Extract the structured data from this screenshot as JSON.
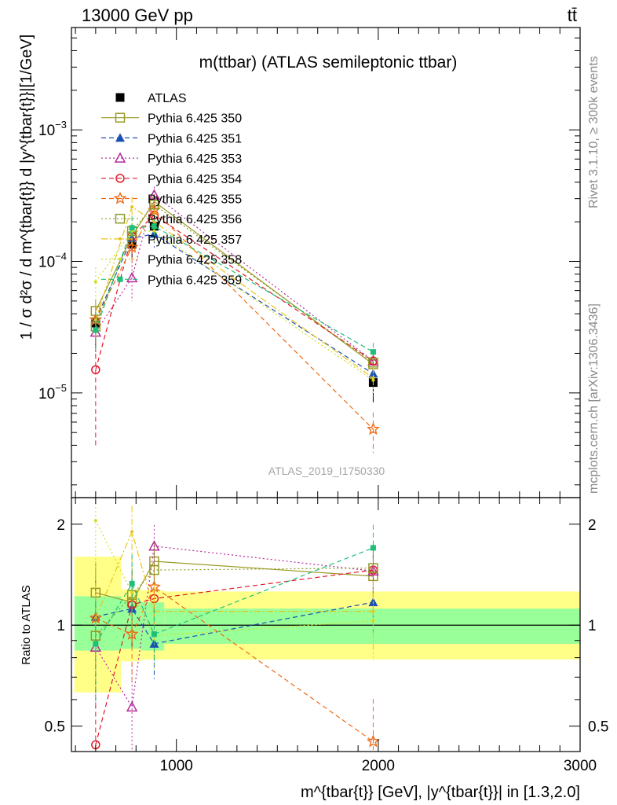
{
  "header": {
    "left": "13000 GeV pp",
    "right": "tt̄"
  },
  "side_text": {
    "rivet": "Rivet 3.1.10, ≥ 300k events",
    "mcplots": "mcplots.cern.ch [arXiv:1306.3436]"
  },
  "analysis_id": "ATLAS_2019_I1750330",
  "colors": {
    "data": "#000000",
    "band_inner": "#99ff99",
    "band_outer": "#ffff88"
  },
  "chart_data": [
    {
      "type": "scatter",
      "title": "m(ttbar) (ATLAS semileptonic ttbar)",
      "xlabel": "m^{tbar{t}} [GeV], |y^{tbar{t}}| in [1.3,2.0]",
      "ylabel": "1 / σ d²σ / d m^{tbar{t}} d |y^{tbar{t}}|[1/GeV]",
      "xlim": [
        480,
        3000
      ],
      "ylim": [
        1.6e-06,
        0.006
      ],
      "yscale": "log",
      "legend_position": "top-left",
      "x": [
        600,
        780,
        890,
        1975
      ],
      "x_edges": [
        [
          495,
          725
        ],
        [
          725,
          825
        ],
        [
          825,
          940
        ],
        [
          940,
          3000
        ]
      ],
      "series": [
        {
          "name": "ATLAS",
          "color": "#000000",
          "marker": "filled-square",
          "style": "none",
          "values": [
            3.4e-05,
            0.000135,
            0.000185,
            1.2e-05
          ],
          "err": [
            1.2e-05,
            3e-05,
            3e-05,
            3.5e-06
          ]
        },
        {
          "name": "Pythia 6.425 350",
          "color": "#9b9a26",
          "marker": "open-square",
          "style": "solid",
          "values": [
            4.2e-05,
            0.000155,
            0.000285,
            1.65e-05
          ],
          "err": [
            1e-05,
            4e-05,
            4e-05,
            3e-06
          ]
        },
        {
          "name": "Pythia 6.425 351",
          "color": "#1a4fb5",
          "marker": "filled-triangle",
          "style": "dashed",
          "values": [
            3.6e-05,
            0.00015,
            0.000162,
            1.4e-05
          ],
          "err": [
            1e-05,
            3.5e-05,
            3.5e-05,
            3e-06
          ]
        },
        {
          "name": "Pythia 6.425 353",
          "color": "#b52a9c",
          "marker": "open-triangle",
          "style": "dotted",
          "values": [
            2.9e-05,
            7.5e-05,
            0.00032,
            1.75e-05
          ],
          "err": [
            1e-05,
            2.5e-05,
            5e-05,
            3e-06
          ]
        },
        {
          "name": "Pythia 6.425 354",
          "color": "#e3182b",
          "marker": "open-circle",
          "style": "dashed",
          "values": [
            1.5e-05,
            0.000155,
            0.000225,
            1.75e-05
          ],
          "err": [
            1.1e-05,
            4e-05,
            4e-05,
            3e-06
          ]
        },
        {
          "name": "Pythia 6.425 355",
          "color": "#f06a14",
          "marker": "open-star",
          "style": "dashed",
          "values": [
            3.6e-05,
            0.000128,
            0.000245,
            5.3e-06
          ],
          "err": [
            1e-05,
            3.5e-05,
            4e-05,
            1.8e-06
          ]
        },
        {
          "name": "Pythia 6.425 356",
          "color": "#8f9a26",
          "marker": "open-square",
          "style": "dotted",
          "values": [
            3.2e-05,
            0.00017,
            0.00027,
            1.7e-05
          ],
          "err": [
            1e-05,
            4e-05,
            4e-05,
            3e-06
          ]
        },
        {
          "name": "Pythia 6.425 357",
          "color": "#e9c218",
          "marker": "dot",
          "style": "dashdot",
          "values": [
            3.6e-05,
            0.00026,
            0.0002,
            1.3e-05
          ],
          "err": [
            1e-05,
            5e-05,
            4e-05,
            3e-06
          ]
        },
        {
          "name": "Pythia 6.425 358",
          "color": "#d4dc1e",
          "marker": "dot",
          "style": "dotted",
          "values": [
            7e-05,
            0.00017,
            0.00017,
            1.25e-05
          ],
          "err": [
            2e-05,
            4e-05,
            3.5e-05,
            3e-06
          ]
        },
        {
          "name": "Pythia 6.425 359",
          "color": "#1fbf7a",
          "marker": "filled-square-small",
          "style": "dashed",
          "values": [
            3e-05,
            0.00018,
            0.000185,
            2.05e-05
          ],
          "err": [
            1e-05,
            4e-05,
            3.5e-05,
            3.5e-06
          ]
        }
      ]
    },
    {
      "type": "scatter",
      "ylabel": "Ratio to ATLAS",
      "xlabel": "m^{tbar{t}} [GeV], |y^{tbar{t}}| in [1.3,2.0]",
      "xlim": [
        480,
        3000
      ],
      "ylim": [
        0.42,
        2.4
      ],
      "yscale": "log",
      "x_ticks": [
        1000,
        2000,
        3000
      ],
      "y_ticks": [
        0.5,
        1,
        2
      ],
      "reference": 1,
      "bands": {
        "x_edges": [
          [
            495,
            725
          ],
          [
            725,
            825
          ],
          [
            825,
            940
          ],
          [
            940,
            3000
          ]
        ],
        "inner": [
          [
            0.84,
            1.22
          ],
          [
            0.85,
            1.18
          ],
          [
            0.84,
            1.17
          ],
          [
            0.88,
            1.12
          ]
        ],
        "outer": [
          [
            0.63,
            1.6
          ],
          [
            0.78,
            1.28
          ],
          [
            0.79,
            1.27
          ],
          [
            0.79,
            1.26
          ]
        ]
      },
      "x": [
        600,
        780,
        890,
        1975
      ],
      "series": [
        {
          "name": "Pythia 6.425 350",
          "values": [
            1.25,
            1.17,
            1.55,
            1.4
          ]
        },
        {
          "name": "Pythia 6.425 351",
          "values": [
            1.06,
            1.12,
            0.88,
            1.17
          ]
        },
        {
          "name": "Pythia 6.425 353",
          "values": [
            0.86,
            0.57,
            1.72,
            1.45
          ]
        },
        {
          "name": "Pythia 6.425 354",
          "values": [
            0.44,
            1.15,
            1.2,
            1.46
          ]
        },
        {
          "name": "Pythia 6.425 355",
          "values": [
            1.05,
            0.94,
            1.3,
            0.45
          ]
        },
        {
          "name": "Pythia 6.425 356",
          "values": [
            0.93,
            1.23,
            1.46,
            1.48
          ]
        },
        {
          "name": "Pythia 6.425 357",
          "values": [
            1.05,
            1.9,
            1.1,
            1.1
          ]
        },
        {
          "name": "Pythia 6.425 358",
          "values": [
            2.05,
            1.25,
            0.93,
            1.03
          ]
        },
        {
          "name": "Pythia 6.425 359",
          "values": [
            0.88,
            1.33,
            0.94,
            1.7
          ]
        }
      ]
    }
  ]
}
